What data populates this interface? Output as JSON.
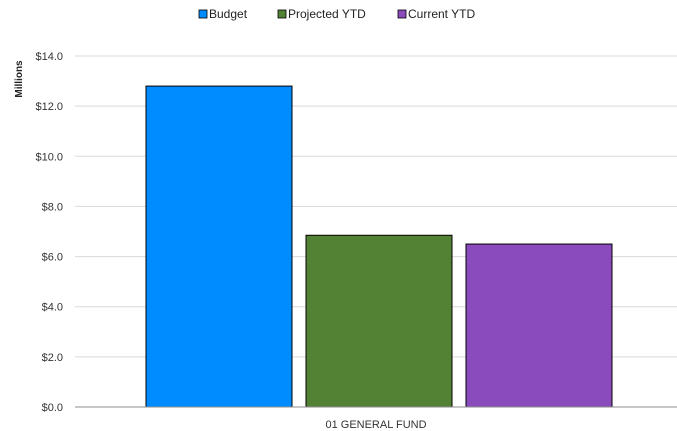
{
  "chart_data": {
    "type": "bar",
    "categories": [
      "01 GENERAL FUND"
    ],
    "series": [
      {
        "name": "Budget",
        "values": [
          12.8
        ],
        "color": "#008cff"
      },
      {
        "name": "Projected YTD",
        "values": [
          6.85
        ],
        "color": "#548235"
      },
      {
        "name": "Current YTD",
        "values": [
          6.5
        ],
        "color": "#8a4bbd"
      }
    ],
    "ylabel": "Millions",
    "xlabel": "",
    "ylim": [
      0,
      14
    ],
    "yticks": [
      0,
      2,
      4,
      6,
      8,
      10,
      12,
      14
    ],
    "ytick_labels": [
      "$0.0",
      "$2.0",
      "$4.0",
      "$6.0",
      "$8.0",
      "$10.0",
      "$12.0",
      "$14.0"
    ],
    "grid": true,
    "legend_position": "top-center"
  }
}
